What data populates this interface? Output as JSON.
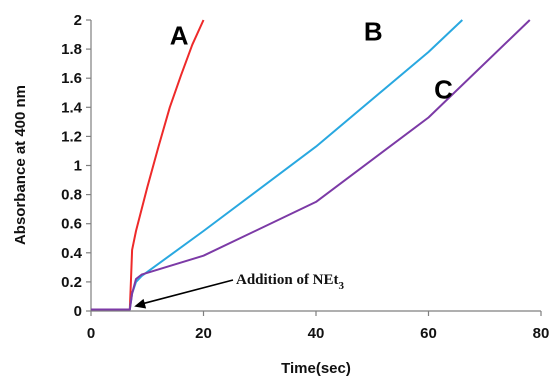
{
  "chart_data": {
    "type": "line",
    "xlabel": "Time(sec)",
    "ylabel": "Absorbance at 400 nm",
    "xlim": [
      0,
      80
    ],
    "ylim": [
      0,
      2
    ],
    "x_ticks": [
      "0",
      "20",
      "40",
      "60",
      "80"
    ],
    "y_ticks": [
      "0",
      "0.2",
      "0.4",
      "0.6",
      "0.8",
      "1",
      "1.2",
      "1.4",
      "1.6",
      "1.8",
      "2"
    ],
    "grid": false,
    "series": [
      {
        "name": "A",
        "color": "#ee2a2a",
        "x": [
          0,
          6.9,
          7.1,
          7.3,
          8,
          10,
          12,
          14,
          16,
          18,
          20
        ],
        "y": [
          0.01,
          0.01,
          0.2,
          0.42,
          0.55,
          0.85,
          1.13,
          1.4,
          1.62,
          1.83,
          2.0
        ]
      },
      {
        "name": "B",
        "color": "#29a8e0",
        "x": [
          0,
          6.9,
          7.3,
          8,
          9,
          20,
          40,
          60,
          66
        ],
        "y": [
          0.01,
          0.01,
          0.12,
          0.2,
          0.24,
          0.55,
          1.13,
          1.78,
          2.0
        ]
      },
      {
        "name": "C",
        "color": "#7c3aa6",
        "x": [
          0,
          6.9,
          7.3,
          8,
          9,
          20,
          40,
          60,
          78
        ],
        "y": [
          0.01,
          0.01,
          0.12,
          0.22,
          0.25,
          0.38,
          0.75,
          1.33,
          2.0
        ]
      }
    ],
    "annotation": {
      "text_main": "Addition of NEt",
      "text_sub": "3",
      "arrow_to": [
        7.5,
        0.01
      ]
    }
  }
}
